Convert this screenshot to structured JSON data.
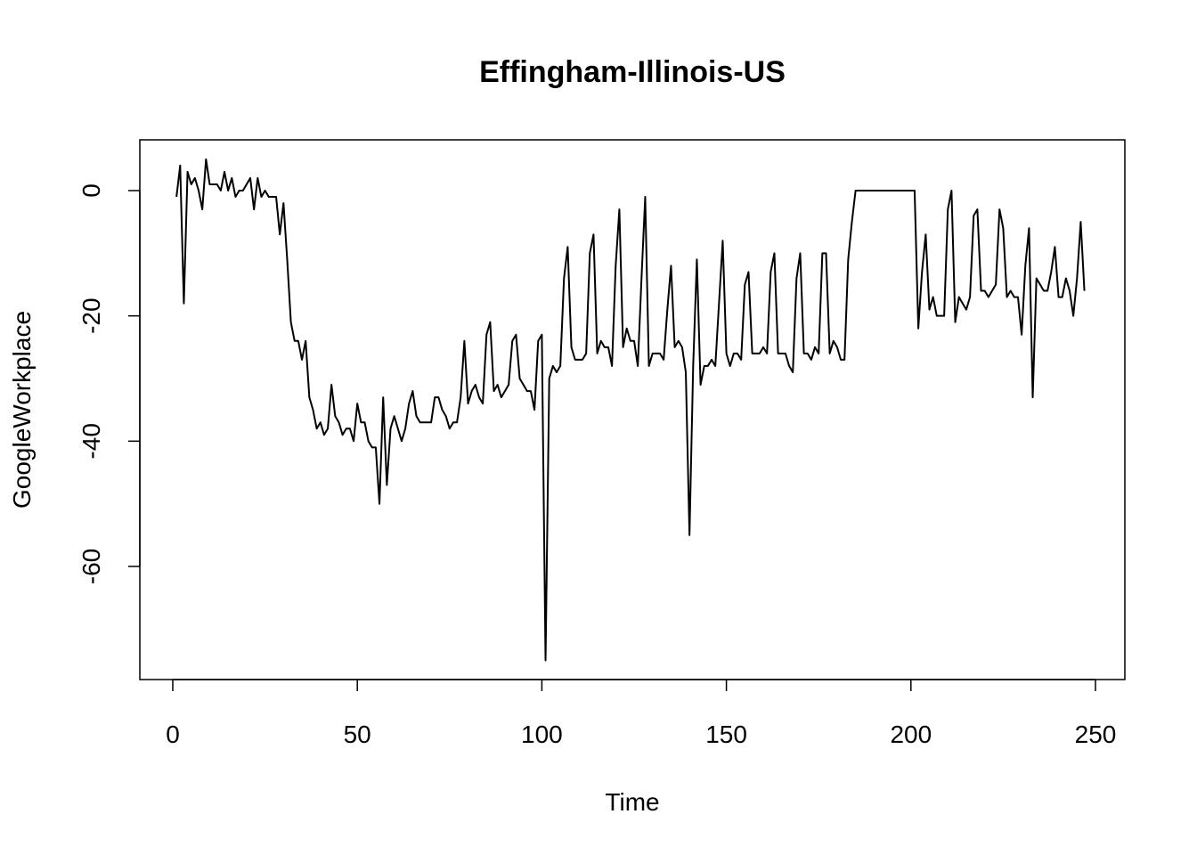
{
  "chart_data": {
    "type": "line",
    "title": "Effingham-Illinois-US",
    "xlabel": "Time",
    "ylabel": "GoogleWorkplace",
    "xlim": [
      1,
      248
    ],
    "ylim": [
      -75,
      5
    ],
    "x_ticks": [
      0,
      50,
      100,
      150,
      200,
      250
    ],
    "y_ticks": [
      0,
      -20,
      -40,
      -60
    ],
    "grid": false,
    "series": [
      {
        "color": "#000000",
        "values": [
          -1,
          4,
          -18,
          3,
          1,
          2,
          0,
          -3,
          5,
          1,
          1,
          1,
          0,
          3,
          0,
          2,
          -1,
          0,
          0,
          1,
          2,
          -3,
          2,
          -1,
          0,
          -1,
          -1,
          -1,
          -7,
          -2,
          -11,
          -21,
          -24,
          -24,
          -27,
          -24,
          -33,
          -35,
          -38,
          -37,
          -39,
          -38,
          -31,
          -36,
          -37,
          -39,
          -38,
          -38,
          -40,
          -34,
          -37,
          -37,
          -40,
          -41,
          -41,
          -50,
          -33,
          -47,
          -38,
          -36,
          -38,
          -40,
          -38,
          -34,
          -32,
          -36,
          -37,
          -37,
          -37,
          -37,
          -33,
          -33,
          -35,
          -36,
          -38,
          -37,
          -37,
          -33,
          -24,
          -34,
          -32,
          -31,
          -33,
          -34,
          -23,
          -21,
          -32,
          -31,
          -33,
          -32,
          -31,
          -24,
          -23,
          -30,
          -31,
          -32,
          -32,
          -35,
          -24,
          -23,
          -75,
          -30,
          -28,
          -29,
          -28,
          -14,
          -9,
          -25,
          -27,
          -27,
          -27,
          -26,
          -10,
          -7,
          -26,
          -24,
          -25,
          -25,
          -28,
          -12,
          -3,
          -25,
          -22,
          -24,
          -24,
          -28,
          -14,
          -1,
          -28,
          -26,
          -26,
          -26,
          -27,
          -19,
          -12,
          -25,
          -24,
          -25,
          -29,
          -55,
          -28,
          -11,
          -31,
          -28,
          -28,
          -27,
          -28,
          -18,
          -8,
          -26,
          -28,
          -26,
          -26,
          -27,
          -15,
          -13,
          -26,
          -26,
          -26,
          -25,
          -26,
          -13,
          -10,
          -26,
          -26,
          -26,
          -28,
          -29,
          -14,
          -10,
          -26,
          -26,
          -27,
          -25,
          -26,
          -10,
          -10,
          -26,
          -24,
          -25,
          -27,
          -27,
          -11,
          -5,
          0,
          0,
          0,
          0,
          0,
          0,
          0,
          0,
          0,
          0,
          0,
          0,
          0,
          0,
          0,
          0,
          0,
          -22,
          -13,
          -7,
          -19,
          -17,
          -20,
          -20,
          -20,
          -3,
          0,
          -21,
          -17,
          -18,
          -19,
          -17,
          -4,
          -3,
          -16,
          -16,
          -17,
          -16,
          -15,
          -3,
          -6,
          -17,
          -16,
          -17,
          -17,
          -23,
          -12,
          -6,
          -33,
          -14,
          -15,
          -16,
          -16,
          -13,
          -9,
          -17,
          -17,
          -14,
          -16,
          -20,
          -14,
          -5,
          -16
        ]
      }
    ]
  }
}
